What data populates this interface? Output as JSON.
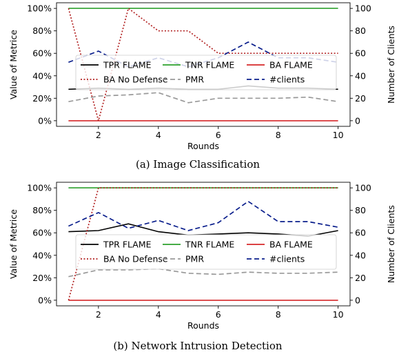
{
  "chart_data": [
    {
      "type": "line",
      "caption": "(a) Image Classification",
      "xlabel": "Rounds",
      "ylabel": "Value of Metrice",
      "y2label": "Number of Clients",
      "x": [
        1,
        2,
        3,
        4,
        5,
        6,
        7,
        8,
        9,
        10
      ],
      "xlim": [
        0.6,
        10.4
      ],
      "xticks": [
        2,
        4,
        6,
        8,
        10
      ],
      "ylim": [
        -0.05,
        1.05
      ],
      "yticks": [
        0,
        0.2,
        0.4,
        0.6,
        0.8,
        1.0
      ],
      "ytick_labels": [
        "0%",
        "20%",
        "40%",
        "60%",
        "80%",
        "100%"
      ],
      "y2lim": [
        -5,
        105
      ],
      "y2ticks": [
        0,
        20,
        40,
        60,
        80,
        100
      ],
      "ytick2_labels": [
        "0",
        "20",
        "40",
        "60",
        "80",
        "100"
      ],
      "legend_placement": "center",
      "series": [
        {
          "name": "TPR FLAME",
          "axis": "left",
          "color": "#000000",
          "dash": "solid",
          "values": [
            0.28,
            0.29,
            0.28,
            0.29,
            0.28,
            0.28,
            0.31,
            0.29,
            0.29,
            0.28
          ]
        },
        {
          "name": "TNR FLAME",
          "axis": "left",
          "color": "#2ca02c",
          "dash": "solid",
          "values": [
            1.0,
            1.0,
            1.0,
            1.0,
            1.0,
            1.0,
            1.0,
            1.0,
            1.0,
            1.0
          ]
        },
        {
          "name": "BA FLAME",
          "axis": "left",
          "color": "#d62728",
          "dash": "solid",
          "values": [
            0,
            0,
            0,
            0,
            0,
            0,
            0,
            0,
            0,
            0
          ]
        },
        {
          "name": "BA No Defense",
          "axis": "left",
          "color": "#b22222",
          "dash": "dotted",
          "values": [
            1.0,
            0.0,
            1.0,
            0.8,
            0.8,
            0.6,
            0.6,
            0.6,
            0.6,
            0.6
          ]
        },
        {
          "name": "PMR",
          "axis": "left",
          "color": "#999999",
          "dash": "dashed",
          "values": [
            0.17,
            0.22,
            0.23,
            0.25,
            0.16,
            0.2,
            0.2,
            0.2,
            0.21,
            0.17
          ]
        },
        {
          "name": "#clients",
          "axis": "right",
          "color": "#0a1e8c",
          "dash": "dashed",
          "values": [
            52,
            62,
            48,
            56,
            48,
            56,
            70,
            56,
            56,
            52
          ]
        }
      ]
    },
    {
      "type": "line",
      "caption": "(b) Network Intrusion Detection",
      "xlabel": "Rounds",
      "ylabel": "Value of Metrice",
      "y2label": "Number of Clients",
      "x": [
        1,
        2,
        3,
        4,
        5,
        6,
        7,
        8,
        9,
        10
      ],
      "xlim": [
        0.6,
        10.4
      ],
      "xticks": [
        2,
        4,
        6,
        8,
        10
      ],
      "ylim": [
        -0.05,
        1.05
      ],
      "yticks": [
        0,
        0.2,
        0.4,
        0.6,
        0.8,
        1.0
      ],
      "ytick_labels": [
        "0%",
        "20%",
        "40%",
        "60%",
        "80%",
        "100%"
      ],
      "y2lim": [
        -5,
        105
      ],
      "y2ticks": [
        0,
        20,
        40,
        60,
        80,
        100
      ],
      "ytick2_labels": [
        "0",
        "20",
        "40",
        "60",
        "80",
        "100"
      ],
      "legend_placement": "center",
      "series": [
        {
          "name": "TPR FLAME",
          "axis": "left",
          "color": "#000000",
          "dash": "solid",
          "values": [
            0.61,
            0.62,
            0.68,
            0.61,
            0.58,
            0.59,
            0.6,
            0.59,
            0.57,
            0.62
          ]
        },
        {
          "name": "TNR FLAME",
          "axis": "left",
          "color": "#2ca02c",
          "dash": "solid",
          "values": [
            1.0,
            1.0,
            1.0,
            1.0,
            1.0,
            1.0,
            1.0,
            1.0,
            1.0,
            1.0
          ]
        },
        {
          "name": "BA FLAME",
          "axis": "left",
          "color": "#d62728",
          "dash": "solid",
          "values": [
            0,
            0,
            0,
            0,
            0,
            0,
            0,
            0,
            0,
            0
          ]
        },
        {
          "name": "BA No Defense",
          "axis": "left",
          "color": "#b22222",
          "dash": "dotted",
          "values": [
            0.0,
            1.0,
            1.0,
            1.0,
            1.0,
            1.0,
            1.0,
            1.0,
            1.0,
            1.0
          ]
        },
        {
          "name": "PMR",
          "axis": "left",
          "color": "#999999",
          "dash": "dashed",
          "values": [
            0.21,
            0.27,
            0.27,
            0.28,
            0.24,
            0.23,
            0.25,
            0.24,
            0.24,
            0.25
          ]
        },
        {
          "name": "#clients",
          "axis": "right",
          "color": "#0a1e8c",
          "dash": "dashed",
          "values": [
            66,
            78,
            64,
            71,
            62,
            69,
            88,
            70,
            70,
            65
          ]
        }
      ]
    }
  ]
}
